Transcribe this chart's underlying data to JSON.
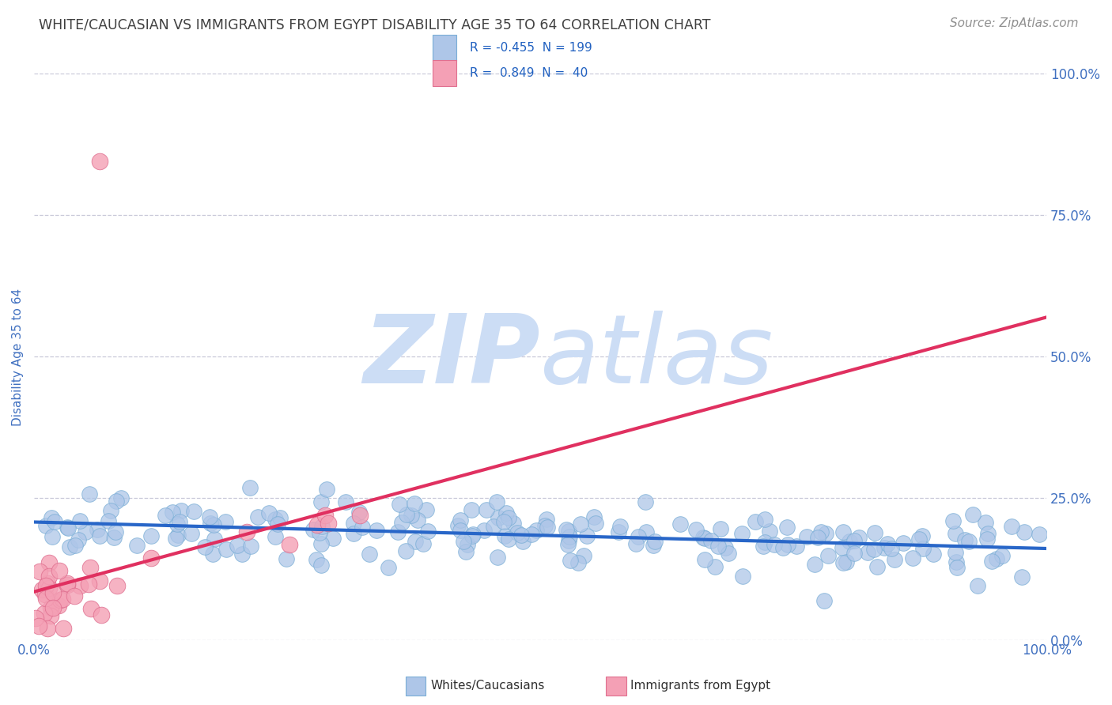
{
  "title": "WHITE/CAUCASIAN VS IMMIGRANTS FROM EGYPT DISABILITY AGE 35 TO 64 CORRELATION CHART",
  "source": "Source: ZipAtlas.com",
  "ylabel": "Disability Age 35 to 64",
  "xlim": [
    0,
    1
  ],
  "ylim": [
    0,
    1
  ],
  "ytick_labels": [
    "0.0%",
    "25.0%",
    "50.0%",
    "75.0%",
    "100.0%"
  ],
  "ytick_positions": [
    0,
    0.25,
    0.5,
    0.75,
    1.0
  ],
  "blue_R": -0.455,
  "blue_N": 199,
  "pink_R": 0.849,
  "pink_N": 40,
  "blue_color": "#aec6e8",
  "blue_edge": "#7aaed6",
  "pink_color": "#f4a0b5",
  "pink_edge": "#e07090",
  "blue_line_color": "#2866c8",
  "pink_line_color": "#e03060",
  "grid_color": "#c8c8d8",
  "watermark_zip": "ZIP",
  "watermark_atlas": "atlas",
  "watermark_color": "#ccddf5",
  "title_color": "#404040",
  "source_color": "#909090",
  "axis_label_color": "#4070c0",
  "tick_color": "#4070c0",
  "background_color": "#ffffff",
  "title_fontsize": 12.5,
  "source_fontsize": 11,
  "legend_text_color": "#2060c0",
  "legend_label_color": "#303030"
}
